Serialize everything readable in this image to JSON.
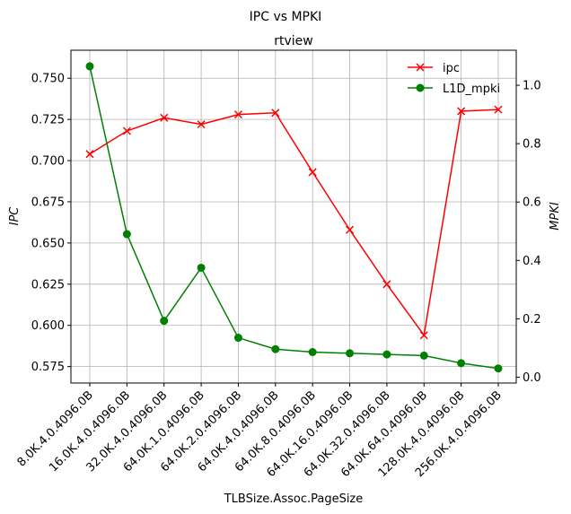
{
  "chart_data": {
    "type": "line",
    "suptitle": "IPC vs MPKI",
    "title": "rtview",
    "xlabel": "TLBSize.Assoc.PageSize",
    "ylabel_left": "IPC",
    "ylabel_right": "MPKI",
    "categories": [
      "8.0K.4.0.4096.0B",
      "16.0K.4.0.4096.0B",
      "32.0K.4.0.4096.0B",
      "64.0K.1.0.4096.0B",
      "64.0K.2.0.4096.0B",
      "64.0K.4.0.4096.0B",
      "64.0K.8.0.4096.0B",
      "64.0K.16.0.4096.0B",
      "64.0K.32.0.4096.0B",
      "64.0K.64.0.4096.0B",
      "128.0K.4.0.4096.0B",
      "256.0K.4.0.4096.0B"
    ],
    "left_axis": {
      "ylim": [
        0.565,
        0.767
      ],
      "ticks": [
        0.575,
        0.6,
        0.625,
        0.65,
        0.675,
        0.7,
        0.725,
        0.75
      ],
      "tick_labels": [
        "0.575",
        "0.600",
        "0.625",
        "0.650",
        "0.675",
        "0.700",
        "0.725",
        "0.750"
      ]
    },
    "right_axis": {
      "ylim": [
        -0.02,
        1.12
      ],
      "ticks": [
        0.0,
        0.2,
        0.4,
        0.6,
        0.8,
        1.0
      ],
      "tick_labels": [
        "0.0",
        "0.2",
        "0.4",
        "0.6",
        "0.8",
        "1.0"
      ]
    },
    "series": [
      {
        "name": "ipc",
        "axis": "left",
        "color": "#ff0000",
        "marker": "x",
        "values": [
          0.704,
          0.718,
          0.726,
          0.722,
          0.728,
          0.729,
          0.693,
          0.658,
          0.625,
          0.594,
          0.73,
          0.731
        ]
      },
      {
        "name": "L1D_mpki",
        "axis": "right",
        "color": "#008000",
        "marker": "o",
        "values": [
          1.065,
          0.49,
          0.193,
          0.375,
          0.135,
          0.096,
          0.086,
          0.082,
          0.078,
          0.074,
          0.048,
          0.03
        ]
      }
    ],
    "grid": true,
    "legend_position": "upper-right"
  }
}
